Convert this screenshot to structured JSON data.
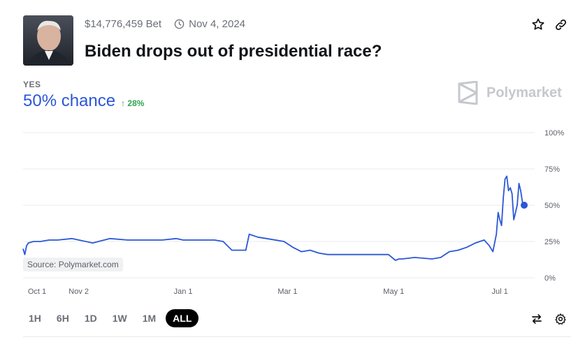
{
  "market": {
    "volume": "$14,776,459 Bet",
    "end_date": "Nov 4, 2024",
    "title": "Biden drops out of presidential race?",
    "outcome_label": "YES",
    "chance": "50% chance",
    "delta": "↑ 28%"
  },
  "icons": {
    "avatar": "portrait-photo",
    "clock": "clock-icon",
    "star": "star-icon",
    "link": "link-icon",
    "swap": "swap-arrows-icon",
    "settings": "gear-icon",
    "brand": "polymarket-logo-icon"
  },
  "brand": {
    "name": "Polymarket"
  },
  "source_label": "Source: Polymarket.com",
  "time_ranges": [
    {
      "label": "1H",
      "active": false
    },
    {
      "label": "6H",
      "active": false
    },
    {
      "label": "1D",
      "active": false
    },
    {
      "label": "1W",
      "active": false
    },
    {
      "label": "1M",
      "active": false
    },
    {
      "label": "ALL",
      "active": true
    }
  ],
  "colors": {
    "accent": "#2b57d6",
    "delta": "#2ea44f",
    "muted": "#6b6f76",
    "grid": "#e9ebee"
  },
  "chart_data": {
    "type": "line",
    "x_ticks": [
      "Oct 1",
      "Nov 2",
      "Jan 1",
      "Mar 1",
      "May 1",
      "Jul 1"
    ],
    "y_ticks": [
      "0%",
      "25%",
      "50%",
      "75%",
      "100%"
    ],
    "ylim": [
      0,
      100
    ],
    "xlim": [
      0,
      300
    ],
    "tick_positions": [
      0,
      32,
      92,
      152,
      213,
      274
    ],
    "grid": true,
    "series": [
      {
        "x": [
          0,
          1,
          2,
          3,
          6,
          10,
          15,
          20,
          28,
          32,
          40,
          50,
          60,
          70,
          80,
          88,
          92,
          100,
          110,
          115,
          120,
          125,
          128,
          130,
          135,
          140,
          150,
          155,
          160,
          165,
          170,
          175,
          180,
          190,
          200,
          210,
          214,
          216,
          218,
          225,
          235,
          240,
          245,
          250,
          255,
          260,
          265,
          268,
          270,
          272,
          273,
          274,
          275,
          276,
          277,
          278,
          279,
          280,
          281,
          282,
          283,
          284,
          285,
          286,
          287,
          288
        ],
        "y": [
          20,
          16,
          22,
          24,
          25,
          25,
          26,
          26,
          27,
          26,
          24,
          27,
          26,
          26,
          26,
          27,
          26,
          26,
          26,
          25,
          19,
          19,
          19,
          30,
          28,
          27,
          25,
          21,
          18,
          19,
          17,
          16,
          16,
          16,
          16,
          16,
          12,
          13,
          13,
          14,
          13,
          14,
          18,
          19,
          21,
          24,
          26,
          22,
          18,
          30,
          45,
          40,
          36,
          55,
          68,
          70,
          60,
          62,
          58,
          40,
          45,
          50,
          65,
          60,
          52,
          50
        ]
      }
    ],
    "current_point": {
      "x": 288,
      "y": 50
    }
  }
}
